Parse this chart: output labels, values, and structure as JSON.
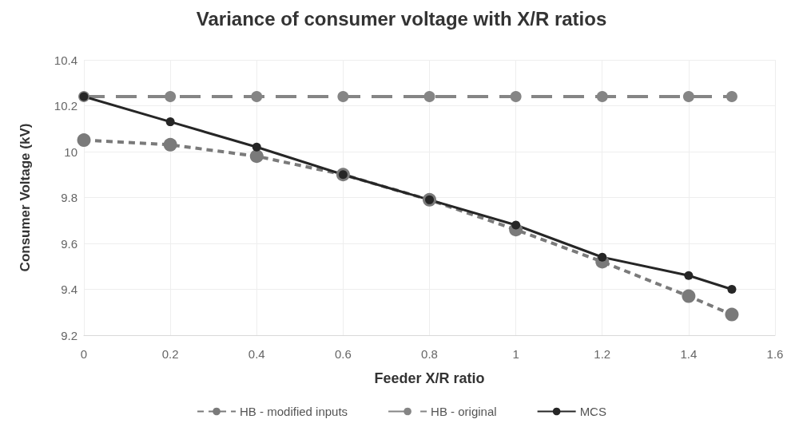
{
  "chart_data": {
    "type": "line",
    "title": "Variance of consumer voltage with X/R ratios",
    "xlabel": "Feeder X/R ratio",
    "ylabel": "Consumer Voltage (kV)",
    "x": [
      0,
      0.2,
      0.4,
      0.6,
      0.8,
      1,
      1.2,
      1.4,
      1.5
    ],
    "xlim": [
      0,
      1.6
    ],
    "xticks": [
      0,
      0.2,
      0.4,
      0.6,
      0.8,
      1,
      1.2,
      1.4,
      1.6
    ],
    "ylim": [
      9.2,
      10.4
    ],
    "yticks": [
      9.2,
      9.4,
      9.6,
      9.8,
      10,
      10.2,
      10.4
    ],
    "grid": true,
    "legend": "bottom",
    "marker": "circle",
    "series": [
      {
        "name": "HB - modified inputs",
        "color": "#7a7a7a",
        "line_style": "dashed",
        "values": [
          10.05,
          10.03,
          9.98,
          9.9,
          9.79,
          9.66,
          9.52,
          9.37,
          9.29
        ]
      },
      {
        "name": "HB - original",
        "color": "#858585",
        "line_style": "longdash",
        "values": [
          10.24,
          10.24,
          10.24,
          10.24,
          10.24,
          10.24,
          10.24,
          10.24,
          10.24
        ]
      },
      {
        "name": "MCS",
        "color": "#262626",
        "line_style": "solid",
        "values": [
          10.24,
          10.13,
          10.02,
          9.9,
          9.79,
          9.68,
          9.54,
          9.46,
          9.4
        ]
      }
    ]
  }
}
